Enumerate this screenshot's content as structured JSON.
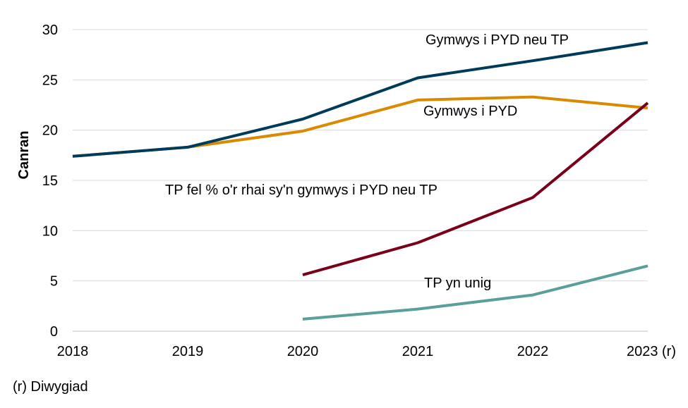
{
  "chart_data": {
    "type": "line",
    "title": "",
    "xlabel": "",
    "ylabel": "Canran",
    "categories": [
      "2018",
      "2019",
      "2020",
      "2021",
      "2022",
      "2023 (r)"
    ],
    "ylim": [
      0,
      30
    ],
    "yticks": [
      0,
      5,
      10,
      15,
      20,
      25,
      30
    ],
    "grid": true,
    "series": [
      {
        "name": "Gymwys i PYD neu TP",
        "color": "#003b5c",
        "values": [
          17.4,
          18.3,
          21.1,
          25.2,
          26.9,
          28.7
        ]
      },
      {
        "name": "Gymwys i PYD",
        "color": "#d98a00",
        "values": [
          17.4,
          18.3,
          19.9,
          23.0,
          23.3,
          22.2
        ]
      },
      {
        "name": "TP fel % o'r rhai sy'n gymwys i PYD neu TP",
        "color": "#7a0019",
        "values": [
          null,
          null,
          5.6,
          8.8,
          13.3,
          22.7
        ]
      },
      {
        "name": "TP yn unig",
        "color": "#5b9f9c",
        "values": [
          null,
          null,
          1.2,
          2.2,
          3.6,
          6.5
        ]
      }
    ]
  },
  "footnote": "(r) Diwygiad"
}
